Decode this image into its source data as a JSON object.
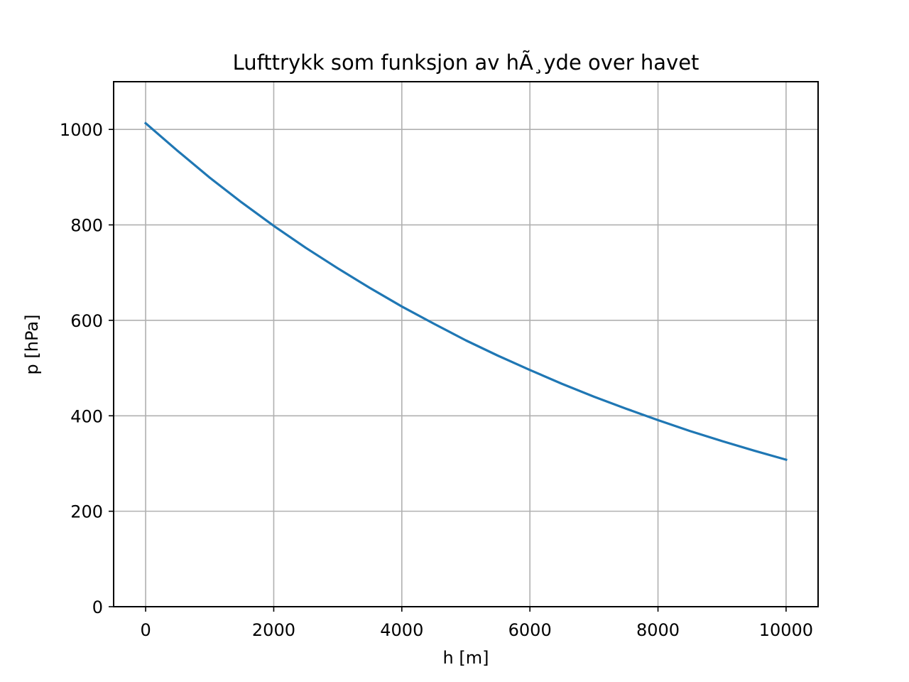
{
  "chart_data": {
    "type": "line",
    "title": "Lufttrykk som funksjon av hÃ¸yde over havet",
    "xlabel": "h [m]",
    "ylabel": "p [hPa]",
    "xlim": [
      -500,
      10500
    ],
    "ylim": [
      0,
      1100
    ],
    "xticks": [
      0,
      2000,
      4000,
      6000,
      8000,
      10000
    ],
    "yticks": [
      0,
      200,
      400,
      600,
      800,
      1000
    ],
    "xtick_labels": [
      "0",
      "2000",
      "4000",
      "6000",
      "8000",
      "10000"
    ],
    "ytick_labels": [
      "0",
      "200",
      "400",
      "600",
      "800",
      "1000"
    ],
    "grid": true,
    "series": [
      {
        "color": "#1f77b4",
        "x": [
          0,
          500,
          1000,
          1500,
          2000,
          2500,
          3000,
          3500,
          4000,
          4500,
          5000,
          5500,
          6000,
          6500,
          7000,
          7500,
          8000,
          8500,
          9000,
          9500,
          10000
        ],
        "y": [
          1013,
          955,
          899,
          847,
          798,
          752,
          709,
          668,
          629,
          593,
          558,
          526,
          496,
          467,
          440,
          415,
          391,
          368,
          347,
          327,
          308
        ]
      }
    ]
  }
}
